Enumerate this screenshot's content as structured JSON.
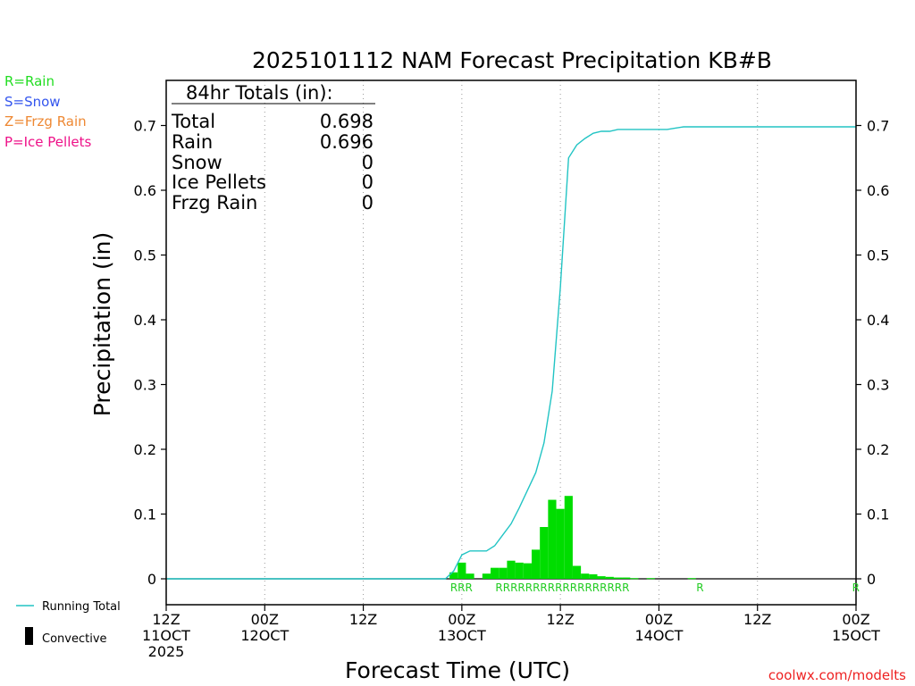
{
  "chart_data": {
    "type": "bar",
    "title": "2025101112 NAM Forecast Precipitation KB#B",
    "xlabel": "Forecast Time (UTC)",
    "ylabel": "Precipitation (in)",
    "xlim_hours": [
      0,
      84
    ],
    "ylim": [
      0,
      0.7
    ],
    "y_ticks": [
      "0",
      "0.1",
      "0.2",
      "0.3",
      "0.4",
      "0.5",
      "0.6",
      "0.7"
    ],
    "y_tick_values": [
      0,
      0.1,
      0.2,
      0.3,
      0.4,
      0.5,
      0.6,
      0.7
    ],
    "x_ticks": [
      {
        "hour": 0,
        "line1": "12Z",
        "line2": "11OCT",
        "line3": "2025"
      },
      {
        "hour": 12,
        "line1": "00Z",
        "line2": "12OCT",
        "line3": ""
      },
      {
        "hour": 24,
        "line1": "12Z",
        "line2": "",
        "line3": ""
      },
      {
        "hour": 36,
        "line1": "00Z",
        "line2": "13OCT",
        "line3": ""
      },
      {
        "hour": 48,
        "line1": "12Z",
        "line2": "",
        "line3": ""
      },
      {
        "hour": 60,
        "line1": "00Z",
        "line2": "14OCT",
        "line3": ""
      },
      {
        "hour": 72,
        "line1": "12Z",
        "line2": "",
        "line3": ""
      },
      {
        "hour": 84,
        "line1": "00Z",
        "line2": "15OCT",
        "line3": ""
      }
    ],
    "series": [
      {
        "name": "Hourly precipitation (Rain)",
        "kind": "bar",
        "color": "#00dd00",
        "hours": [
          35,
          36,
          37,
          39,
          40,
          41,
          42,
          43,
          44,
          45,
          46,
          47,
          48,
          49,
          50,
          51,
          52,
          53,
          54,
          55,
          56,
          57,
          59,
          64
        ],
        "values": [
          0.01,
          0.025,
          0.008,
          0.008,
          0.017,
          0.017,
          0.028,
          0.025,
          0.024,
          0.045,
          0.08,
          0.122,
          0.108,
          0.128,
          0.02,
          0.008,
          0.007,
          0.004,
          0.003,
          0.002,
          0.002,
          0.001,
          0.001,
          0.001
        ]
      },
      {
        "name": "Running Total",
        "kind": "line",
        "color": "#22c4c4",
        "hours": [
          0,
          34,
          35,
          36,
          37,
          38,
          39,
          40,
          41,
          42,
          43,
          44,
          45,
          46,
          47,
          48,
          49,
          50,
          51,
          52,
          53,
          54,
          55,
          56,
          57,
          58,
          59,
          60,
          61,
          62,
          63,
          64,
          84
        ],
        "values": [
          0,
          0,
          0.012,
          0.037,
          0.043,
          0.043,
          0.043,
          0.051,
          0.068,
          0.085,
          0.11,
          0.137,
          0.164,
          0.21,
          0.29,
          0.45,
          0.65,
          0.67,
          0.68,
          0.688,
          0.691,
          0.691,
          0.694,
          0.694,
          0.694,
          0.694,
          0.694,
          0.694,
          0.694,
          0.696,
          0.698,
          0.698,
          0.698
        ]
      }
    ],
    "ptype_markers": [
      {
        "start_hour": 36,
        "text": "RRR"
      },
      {
        "start_hour": 41.5,
        "text": "RRRRRRRRRRRRRRRRRR"
      },
      {
        "start_hour": 65,
        "text": "R"
      },
      {
        "start_hour": 84,
        "text": "R"
      }
    ]
  },
  "totals": {
    "header": "84hr Totals (in):",
    "rows": [
      {
        "label": "Total",
        "value": "0.698"
      },
      {
        "label": "Rain",
        "value": "0.696"
      },
      {
        "label": "Snow",
        "value": "0"
      },
      {
        "label": "Ice Pellets",
        "value": "0"
      },
      {
        "label": "Frzg Rain",
        "value": "0"
      }
    ]
  },
  "key": [
    {
      "text": "R=Rain",
      "color": "#22dd22"
    },
    {
      "text": "S=Snow",
      "color": "#3355ee"
    },
    {
      "text": "Z=Frzg Rain",
      "color": "#ee8833"
    },
    {
      "text": "P=Ice Pellets",
      "color": "#ee1188"
    }
  ],
  "legend": {
    "running_total": "Running Total",
    "convective": "Convective"
  },
  "credit": "coolwx.com/modelts"
}
